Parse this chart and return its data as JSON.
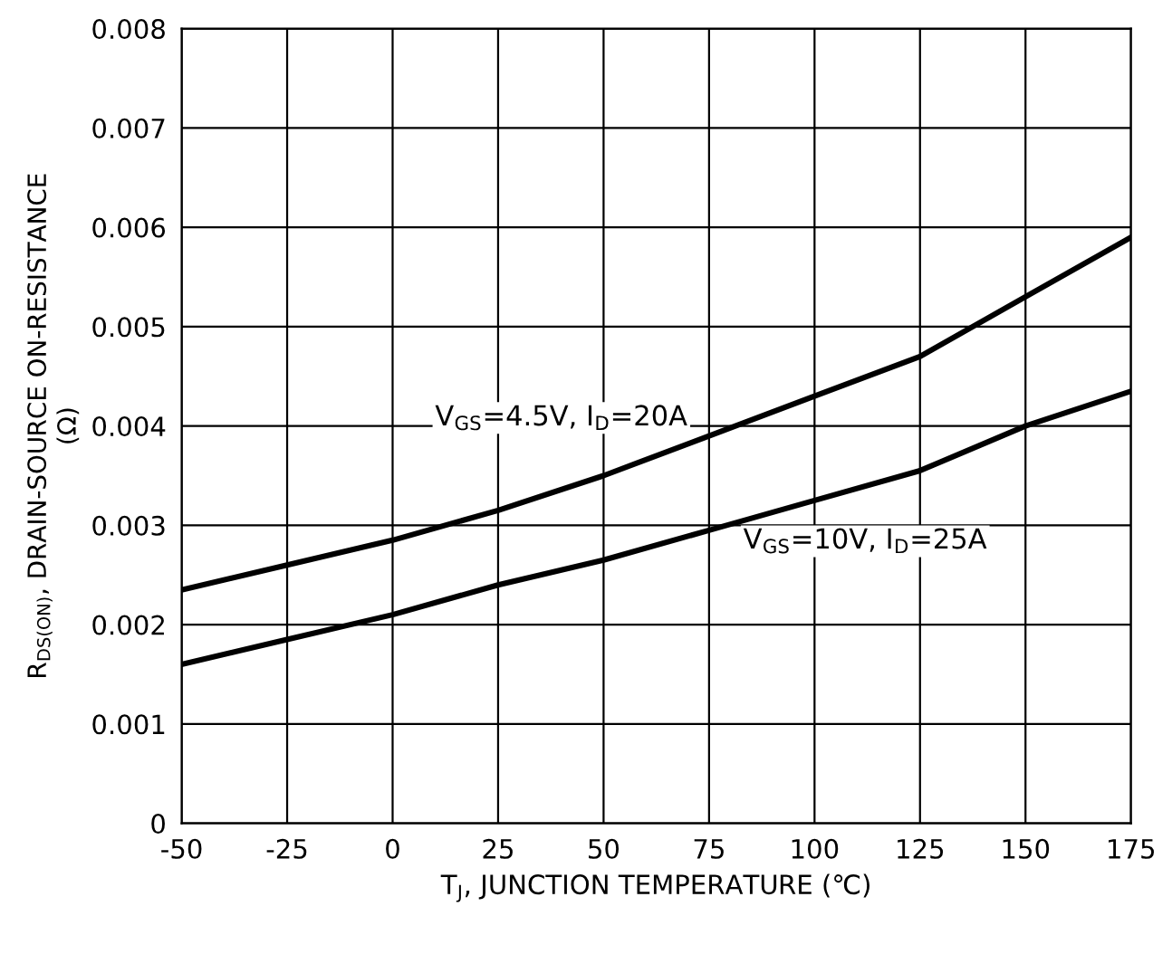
{
  "chart_data": {
    "type": "line",
    "xlabel": "T$_{J}$, JUNCTION TEMPERATURE (℃)",
    "ylabel": "R$_{DS(ON)}$, DRAIN-SOURCE ON-RESISTANCE\n(Ω)",
    "x": [
      -50,
      -25,
      0,
      25,
      50,
      75,
      100,
      125,
      150,
      175
    ],
    "series": [
      {
        "name": "V$_{GS}$=4.5V, I$_{D}$=20A",
        "color": "#000000",
        "values": [
          0.00235,
          0.0026,
          0.00285,
          0.00315,
          0.0035,
          0.0039,
          0.0043,
          0.0047,
          0.0053,
          0.0059
        ]
      },
      {
        "name": "V$_{GS}$=10V, I$_{D}$=25A",
        "color": "#000000",
        "values": [
          0.0016,
          0.00185,
          0.0021,
          0.0024,
          0.00265,
          0.00295,
          0.00325,
          0.00355,
          0.004,
          0.00435
        ]
      }
    ],
    "xlim": [
      -50,
      175
    ],
    "xticks": [
      -50,
      -25,
      0,
      25,
      50,
      75,
      100,
      125,
      150,
      175
    ],
    "ylim": [
      0,
      0.008
    ],
    "yticks": [
      0,
      0.001,
      0.002,
      0.003,
      0.004,
      0.005,
      0.006,
      0.007,
      0.008
    ],
    "grid": true,
    "legend": false,
    "marker": "none",
    "line_style": "solid"
  }
}
